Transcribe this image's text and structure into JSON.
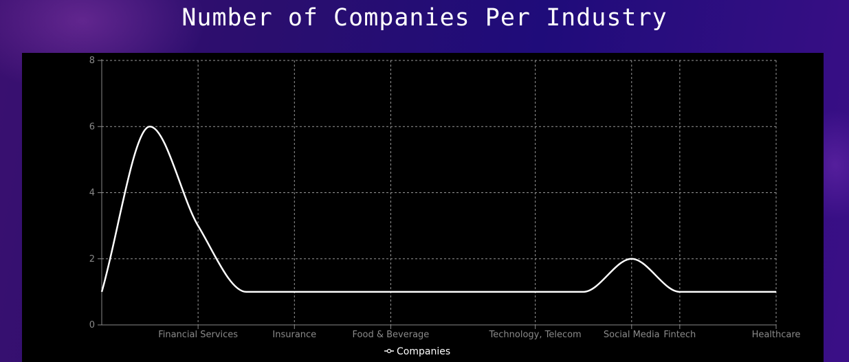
{
  "chart_data": {
    "type": "line",
    "title": "Number of Companies Per Industry",
    "categories": [
      "",
      "Financial Services",
      "Insurance",
      "Food & Beverage",
      "Technology, Telecom",
      "Social Media",
      "Fintech",
      "Healthcare"
    ],
    "series": [
      {
        "name": "Companies",
        "values": [
          1,
          6,
          3,
          1,
          1,
          1,
          1,
          1,
          1,
          1,
          1,
          2,
          1,
          1,
          1
        ]
      }
    ],
    "x_values": [
      0,
      1,
      2,
      3,
      4,
      5,
      6,
      7,
      8,
      9,
      10,
      11,
      12,
      13,
      14
    ],
    "x_tick_positions": [
      2,
      4,
      6,
      9,
      11,
      12,
      14
    ],
    "x_tick_labels": [
      "Financial Services",
      "Insurance",
      "Food & Beverage",
      "Technology, Telecom",
      "Social Media",
      "Fintech",
      "Healthcare"
    ],
    "ylim": [
      0,
      8
    ],
    "yticks": [
      0,
      2,
      4,
      6,
      8
    ],
    "xlim": [
      0,
      14
    ],
    "grid": true,
    "legend": "bottom-center",
    "colors": {
      "line": "#ffffff",
      "grid": "#9a9a9a",
      "axis": "#8a8a8a",
      "panel": "#000000"
    }
  }
}
